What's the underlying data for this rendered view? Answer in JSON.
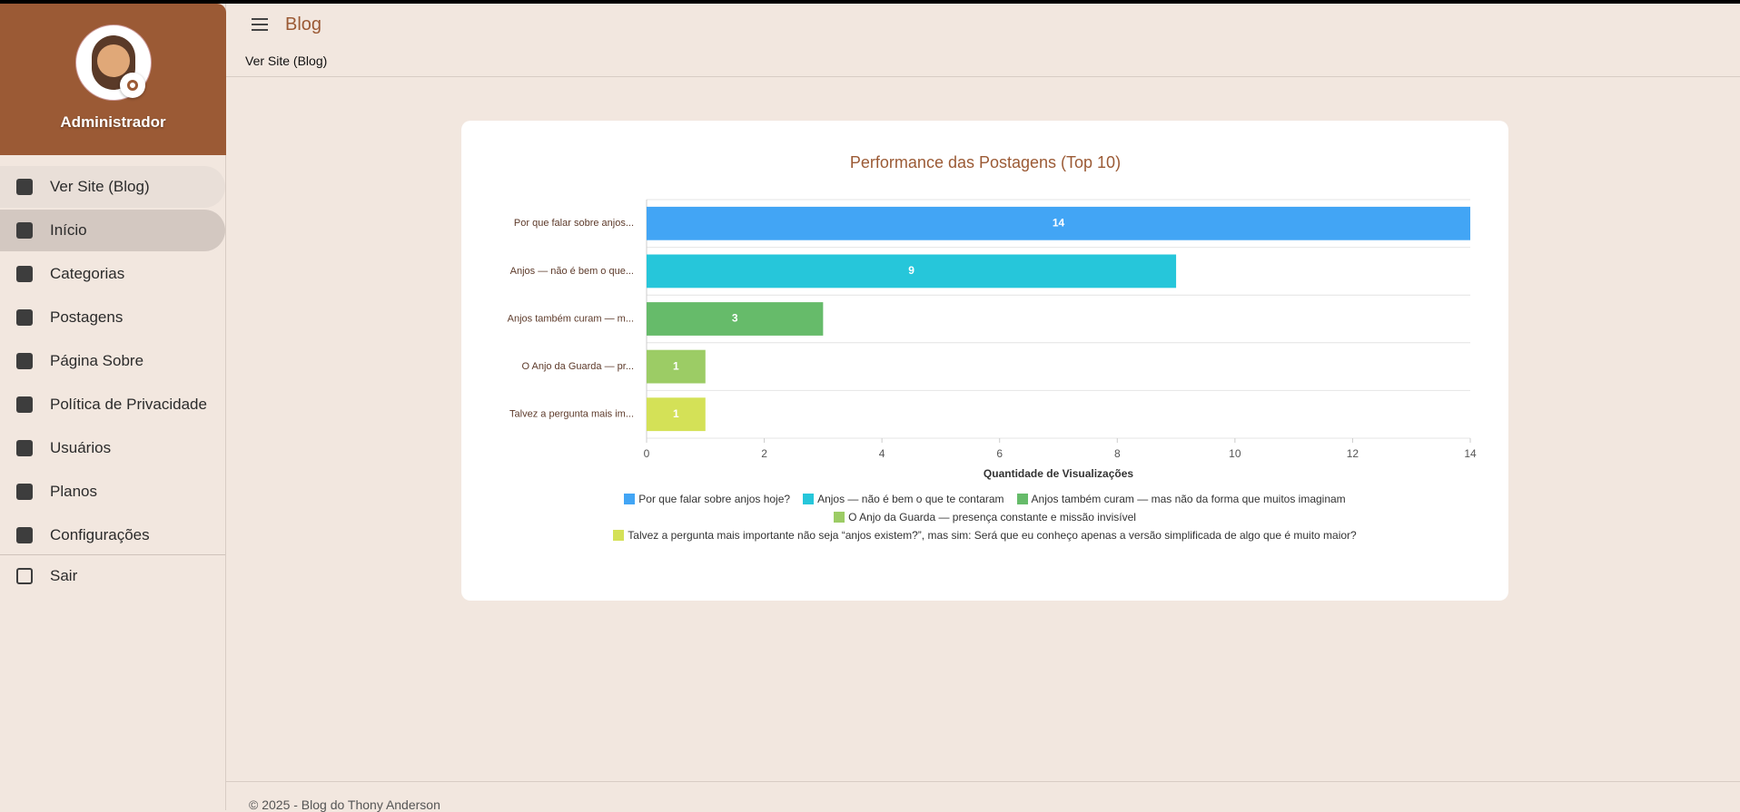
{
  "sidebar": {
    "user": "Administrador",
    "nav": [
      "Ver Site (Blog)",
      "Início",
      "Categorias",
      "Postagens",
      "Página Sobre",
      "Política de Privacidade",
      "Usuários",
      "Planos",
      "Configurações"
    ],
    "logout": "Sair"
  },
  "header": {
    "title": "Blog",
    "breadcrumb": "Ver Site (Blog)"
  },
  "footer": "© 2025 - Blog do Thony Anderson",
  "chart_data": {
    "type": "bar",
    "orientation": "horizontal",
    "title": "Performance das Postagens (Top 10)",
    "x_label": "Quantidade de Visualizações",
    "categories": [
      "Por que falar sobre anjos...",
      "Anjos — não é bem o que...",
      "Anjos também curam — m...",
      "O Anjo da Guarda — pr...",
      "Talvez a pergunta mais im..."
    ],
    "legend": [
      "Por que falar sobre anjos hoje?",
      "Anjos — não é bem o que te contaram",
      "Anjos também curam — mas não da forma que muitos imaginam",
      "O Anjo da Guarda — presença constante e missão invisível",
      "Talvez a pergunta mais importante não seja “anjos existem?”, mas sim: Será que eu conheço apenas a versão simplificada de algo que é muito maior?"
    ],
    "values": [
      14,
      9,
      3,
      1,
      1
    ],
    "colors": [
      "#42a5f5",
      "#26c6da",
      "#66bb6a",
      "#9ccc65",
      "#d4e157"
    ],
    "xlim": [
      0,
      14
    ],
    "xticks": [
      0,
      2,
      4,
      6,
      8,
      10,
      12,
      14
    ]
  }
}
